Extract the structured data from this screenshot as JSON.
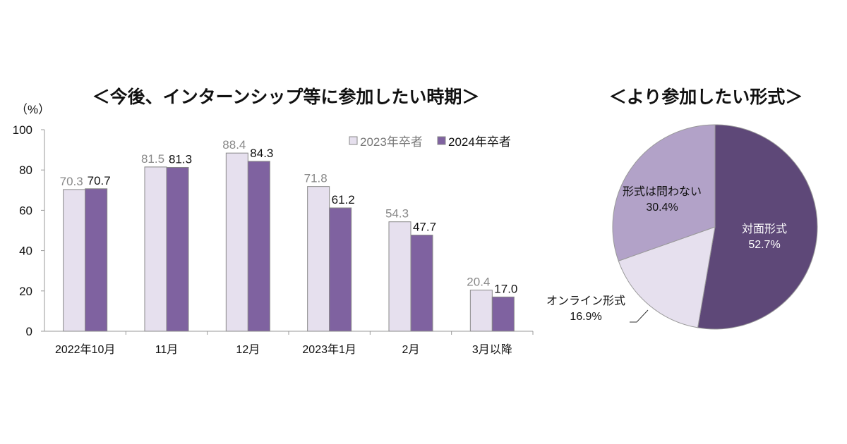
{
  "chart_data": [
    {
      "type": "bar",
      "title": "＜今後、インターンシップ等に参加したい時期＞",
      "ylabel": "（%）",
      "ylim": [
        0,
        100
      ],
      "yticks": [
        0,
        20,
        40,
        60,
        80,
        100
      ],
      "categories": [
        "2022年10月",
        "11月",
        "12月",
        "2023年1月",
        "2月",
        "3月以降"
      ],
      "series": [
        {
          "name": "2023年卒者",
          "values": [
            70.3,
            81.5,
            88.4,
            71.8,
            54.3,
            20.4
          ],
          "color": "#e6e0ee",
          "label_color": "#888888"
        },
        {
          "name": "2024年卒者",
          "values": [
            70.7,
            81.3,
            84.3,
            61.2,
            47.7,
            17.0
          ],
          "color": "#7f62a0",
          "label_color": "#111111"
        }
      ],
      "legend": "top-right",
      "grid": false
    },
    {
      "type": "pie",
      "title": "＜より参加したい形式＞",
      "slices": [
        {
          "label": "対面形式",
          "value": 52.7,
          "display": "52.7%",
          "color": "#5e4878",
          "text_color": "#ffffff"
        },
        {
          "label": "オンライン形式",
          "value": 16.9,
          "display": "16.9%",
          "color": "#e6e0ee",
          "text_color": "#111111"
        },
        {
          "label": "形式は問わない",
          "value": 30.4,
          "display": "30.4%",
          "color": "#b2a2c8",
          "text_color": "#111111"
        }
      ]
    }
  ]
}
